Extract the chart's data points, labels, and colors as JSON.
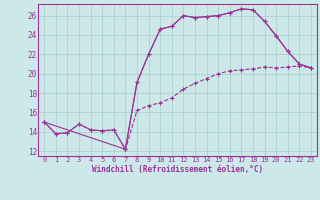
{
  "xlabel": "Windchill (Refroidissement éolien,°C)",
  "bg_color": "#cce8e8",
  "line_color": "#993399",
  "grid_color": "#aacccc",
  "xlim": [
    -0.5,
    23.5
  ],
  "ylim": [
    11.5,
    27.2
  ],
  "yticks": [
    12,
    14,
    16,
    18,
    20,
    22,
    24,
    26
  ],
  "xticks": [
    0,
    1,
    2,
    3,
    4,
    5,
    6,
    7,
    8,
    9,
    10,
    11,
    12,
    13,
    14,
    15,
    16,
    17,
    18,
    19,
    20,
    21,
    22,
    23
  ],
  "line1_x": [
    0,
    1,
    2,
    3,
    4,
    5,
    6,
    7,
    8,
    9,
    10,
    11,
    12,
    13,
    14,
    15,
    16,
    17,
    18,
    19,
    20,
    21,
    22,
    23
  ],
  "line1_y": [
    15.0,
    13.8,
    13.9,
    14.8,
    14.2,
    14.1,
    14.2,
    12.2,
    16.2,
    16.7,
    17.0,
    17.5,
    18.4,
    19.0,
    19.5,
    20.0,
    20.3,
    20.4,
    20.5,
    20.7,
    20.6,
    20.7,
    20.8,
    20.6
  ],
  "line2_x": [
    0,
    1,
    2,
    3,
    4,
    5,
    6,
    7,
    8,
    9,
    10,
    11,
    12,
    13,
    14,
    15,
    16,
    17,
    18,
    19,
    20,
    21,
    22,
    23
  ],
  "line2_y": [
    15.0,
    13.8,
    13.9,
    14.8,
    14.2,
    14.1,
    14.2,
    12.2,
    19.1,
    22.0,
    24.6,
    24.9,
    26.0,
    25.8,
    25.9,
    26.0,
    26.3,
    26.7,
    26.6,
    25.4,
    23.9,
    22.3,
    21.0,
    20.6
  ],
  "line3_x": [
    0,
    7,
    8,
    9,
    10,
    11,
    12,
    13,
    14,
    15,
    16,
    17,
    18,
    19,
    20,
    21,
    22,
    23
  ],
  "line3_y": [
    15.0,
    12.2,
    19.1,
    22.0,
    24.6,
    24.9,
    26.0,
    25.8,
    25.9,
    26.0,
    26.3,
    26.7,
    26.6,
    25.4,
    23.9,
    22.3,
    21.0,
    20.6
  ]
}
